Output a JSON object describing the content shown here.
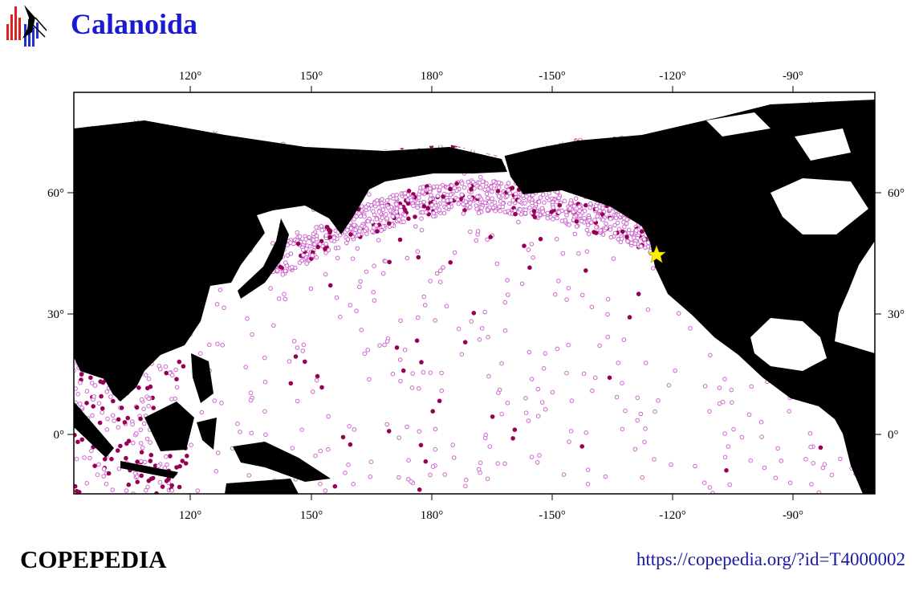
{
  "header": {
    "title": "Calanoida"
  },
  "map": {
    "lon_labels": [
      "120°",
      "150°",
      "180°",
      "-150°",
      "-120°",
      "-90°"
    ],
    "lat_labels": [
      "60°",
      "30°",
      "0°"
    ]
  },
  "footer": {
    "brand": "COPEPEDIA",
    "url": "https://copepedia.org/?id=T4000002"
  }
}
